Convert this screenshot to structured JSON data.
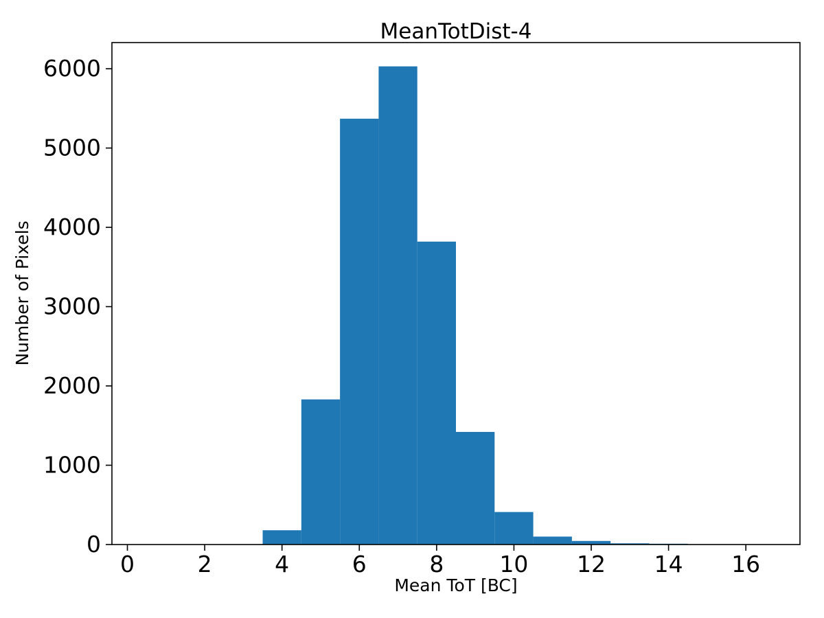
{
  "chart_data": {
    "type": "bar",
    "subtype": "histogram",
    "title": "MeanTotDist-4",
    "xlabel": "Mean ToT [BC]",
    "ylabel": "Number of Pixels",
    "bin_edges": [
      3.5,
      4.5,
      5.5,
      6.5,
      7.5,
      8.5,
      9.5,
      10.5,
      11.5,
      12.5,
      13.5,
      14.5
    ],
    "values": [
      180,
      1830,
      5370,
      6030,
      3820,
      1420,
      410,
      100,
      45,
      15,
      10
    ],
    "xticks": [
      0,
      2,
      4,
      6,
      8,
      10,
      12,
      14,
      16
    ],
    "yticks": [
      0,
      1000,
      2000,
      3000,
      4000,
      5000,
      6000
    ],
    "xlim": [
      -0.4,
      17.4
    ],
    "ylim": [
      0,
      6330
    ],
    "bar_color": "#1f77b4",
    "spine_color": "#000000",
    "grid": false,
    "legend": "none",
    "background_color": "#ffffff"
  }
}
